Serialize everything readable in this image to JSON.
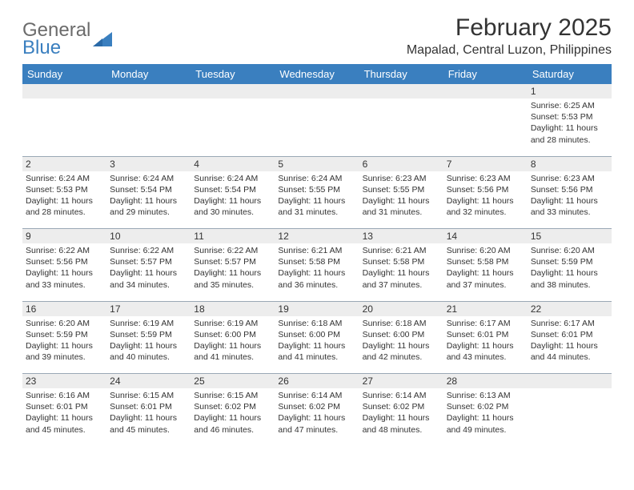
{
  "logo": {
    "line1": "General",
    "line2": "Blue"
  },
  "title": "February 2025",
  "location": "Mapalad, Central Luzon, Philippines",
  "colors": {
    "header_bg": "#3a7fbf",
    "header_fg": "#ffffff",
    "numrow_bg": "#ededed",
    "border": "#9aa8b5",
    "text": "#333333",
    "logo_gray": "#6b6b6b",
    "logo_blue": "#3a7fbf"
  },
  "day_headers": [
    "Sunday",
    "Monday",
    "Tuesday",
    "Wednesday",
    "Thursday",
    "Friday",
    "Saturday"
  ],
  "weeks": [
    {
      "nums": [
        "",
        "",
        "",
        "",
        "",
        "",
        "1"
      ],
      "cells": [
        null,
        null,
        null,
        null,
        null,
        null,
        {
          "sunrise": "6:25 AM",
          "sunset": "5:53 PM",
          "dl_h": 11,
          "dl_m": 28
        }
      ]
    },
    {
      "nums": [
        "2",
        "3",
        "4",
        "5",
        "6",
        "7",
        "8"
      ],
      "cells": [
        {
          "sunrise": "6:24 AM",
          "sunset": "5:53 PM",
          "dl_h": 11,
          "dl_m": 28
        },
        {
          "sunrise": "6:24 AM",
          "sunset": "5:54 PM",
          "dl_h": 11,
          "dl_m": 29
        },
        {
          "sunrise": "6:24 AM",
          "sunset": "5:54 PM",
          "dl_h": 11,
          "dl_m": 30
        },
        {
          "sunrise": "6:24 AM",
          "sunset": "5:55 PM",
          "dl_h": 11,
          "dl_m": 31
        },
        {
          "sunrise": "6:23 AM",
          "sunset": "5:55 PM",
          "dl_h": 11,
          "dl_m": 31
        },
        {
          "sunrise": "6:23 AM",
          "sunset": "5:56 PM",
          "dl_h": 11,
          "dl_m": 32
        },
        {
          "sunrise": "6:23 AM",
          "sunset": "5:56 PM",
          "dl_h": 11,
          "dl_m": 33
        }
      ]
    },
    {
      "nums": [
        "9",
        "10",
        "11",
        "12",
        "13",
        "14",
        "15"
      ],
      "cells": [
        {
          "sunrise": "6:22 AM",
          "sunset": "5:56 PM",
          "dl_h": 11,
          "dl_m": 33
        },
        {
          "sunrise": "6:22 AM",
          "sunset": "5:57 PM",
          "dl_h": 11,
          "dl_m": 34
        },
        {
          "sunrise": "6:22 AM",
          "sunset": "5:57 PM",
          "dl_h": 11,
          "dl_m": 35
        },
        {
          "sunrise": "6:21 AM",
          "sunset": "5:58 PM",
          "dl_h": 11,
          "dl_m": 36
        },
        {
          "sunrise": "6:21 AM",
          "sunset": "5:58 PM",
          "dl_h": 11,
          "dl_m": 37
        },
        {
          "sunrise": "6:20 AM",
          "sunset": "5:58 PM",
          "dl_h": 11,
          "dl_m": 37
        },
        {
          "sunrise": "6:20 AM",
          "sunset": "5:59 PM",
          "dl_h": 11,
          "dl_m": 38
        }
      ]
    },
    {
      "nums": [
        "16",
        "17",
        "18",
        "19",
        "20",
        "21",
        "22"
      ],
      "cells": [
        {
          "sunrise": "6:20 AM",
          "sunset": "5:59 PM",
          "dl_h": 11,
          "dl_m": 39
        },
        {
          "sunrise": "6:19 AM",
          "sunset": "5:59 PM",
          "dl_h": 11,
          "dl_m": 40
        },
        {
          "sunrise": "6:19 AM",
          "sunset": "6:00 PM",
          "dl_h": 11,
          "dl_m": 41
        },
        {
          "sunrise": "6:18 AM",
          "sunset": "6:00 PM",
          "dl_h": 11,
          "dl_m": 41
        },
        {
          "sunrise": "6:18 AM",
          "sunset": "6:00 PM",
          "dl_h": 11,
          "dl_m": 42
        },
        {
          "sunrise": "6:17 AM",
          "sunset": "6:01 PM",
          "dl_h": 11,
          "dl_m": 43
        },
        {
          "sunrise": "6:17 AM",
          "sunset": "6:01 PM",
          "dl_h": 11,
          "dl_m": 44
        }
      ]
    },
    {
      "nums": [
        "23",
        "24",
        "25",
        "26",
        "27",
        "28",
        ""
      ],
      "cells": [
        {
          "sunrise": "6:16 AM",
          "sunset": "6:01 PM",
          "dl_h": 11,
          "dl_m": 45
        },
        {
          "sunrise": "6:15 AM",
          "sunset": "6:01 PM",
          "dl_h": 11,
          "dl_m": 45
        },
        {
          "sunrise": "6:15 AM",
          "sunset": "6:02 PM",
          "dl_h": 11,
          "dl_m": 46
        },
        {
          "sunrise": "6:14 AM",
          "sunset": "6:02 PM",
          "dl_h": 11,
          "dl_m": 47
        },
        {
          "sunrise": "6:14 AM",
          "sunset": "6:02 PM",
          "dl_h": 11,
          "dl_m": 48
        },
        {
          "sunrise": "6:13 AM",
          "sunset": "6:02 PM",
          "dl_h": 11,
          "dl_m": 49
        },
        null
      ]
    }
  ],
  "labels": {
    "sunrise_prefix": "Sunrise: ",
    "sunset_prefix": "Sunset: ",
    "daylight_prefix": "Daylight: ",
    "hours_word": " hours",
    "and_word": "and ",
    "minutes_word": " minutes."
  }
}
